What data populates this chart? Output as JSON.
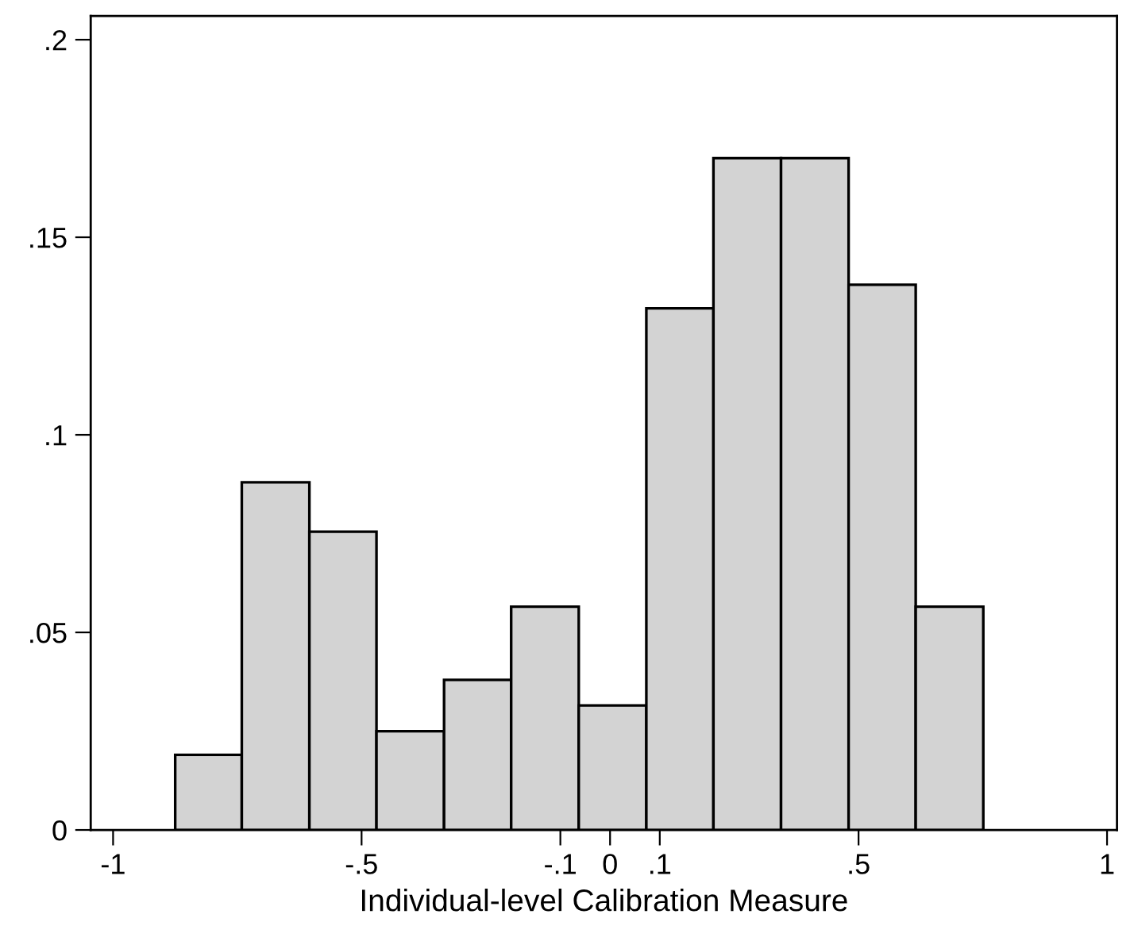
{
  "chart_data": {
    "type": "histogram",
    "xlabel": "Individual-level Calibration Measure",
    "bins": [
      -0.875,
      -0.741,
      -0.605,
      -0.47,
      -0.334,
      -0.199,
      -0.063,
      0.073,
      0.208,
      0.344,
      0.48,
      0.615,
      0.751
    ],
    "values": [
      0.019,
      0.088,
      0.0755,
      0.025,
      0.038,
      0.0565,
      0.0315,
      0.132,
      0.17,
      0.17,
      0.138,
      0.0565
    ],
    "color": "#d3d3d3",
    "xlim": [
      -1.045,
      1.02
    ],
    "ylim": [
      0,
      0.206
    ],
    "xticks": [
      {
        "value": -1,
        "label": "-1"
      },
      {
        "value": -0.5,
        "label": "-.5"
      },
      {
        "value": -0.1,
        "label": "-.1"
      },
      {
        "value": 0,
        "label": "0"
      },
      {
        "value": 0.1,
        "label": ".1"
      },
      {
        "value": 0.5,
        "label": ".5"
      },
      {
        "value": 1,
        "label": "1"
      }
    ],
    "yticks": [
      {
        "value": 0,
        "label": "0"
      },
      {
        "value": 0.05,
        "label": ".05"
      },
      {
        "value": 0.1,
        "label": ".1"
      },
      {
        "value": 0.15,
        "label": ".15"
      },
      {
        "value": 0.2,
        "label": ".2"
      }
    ],
    "grid": false
  }
}
